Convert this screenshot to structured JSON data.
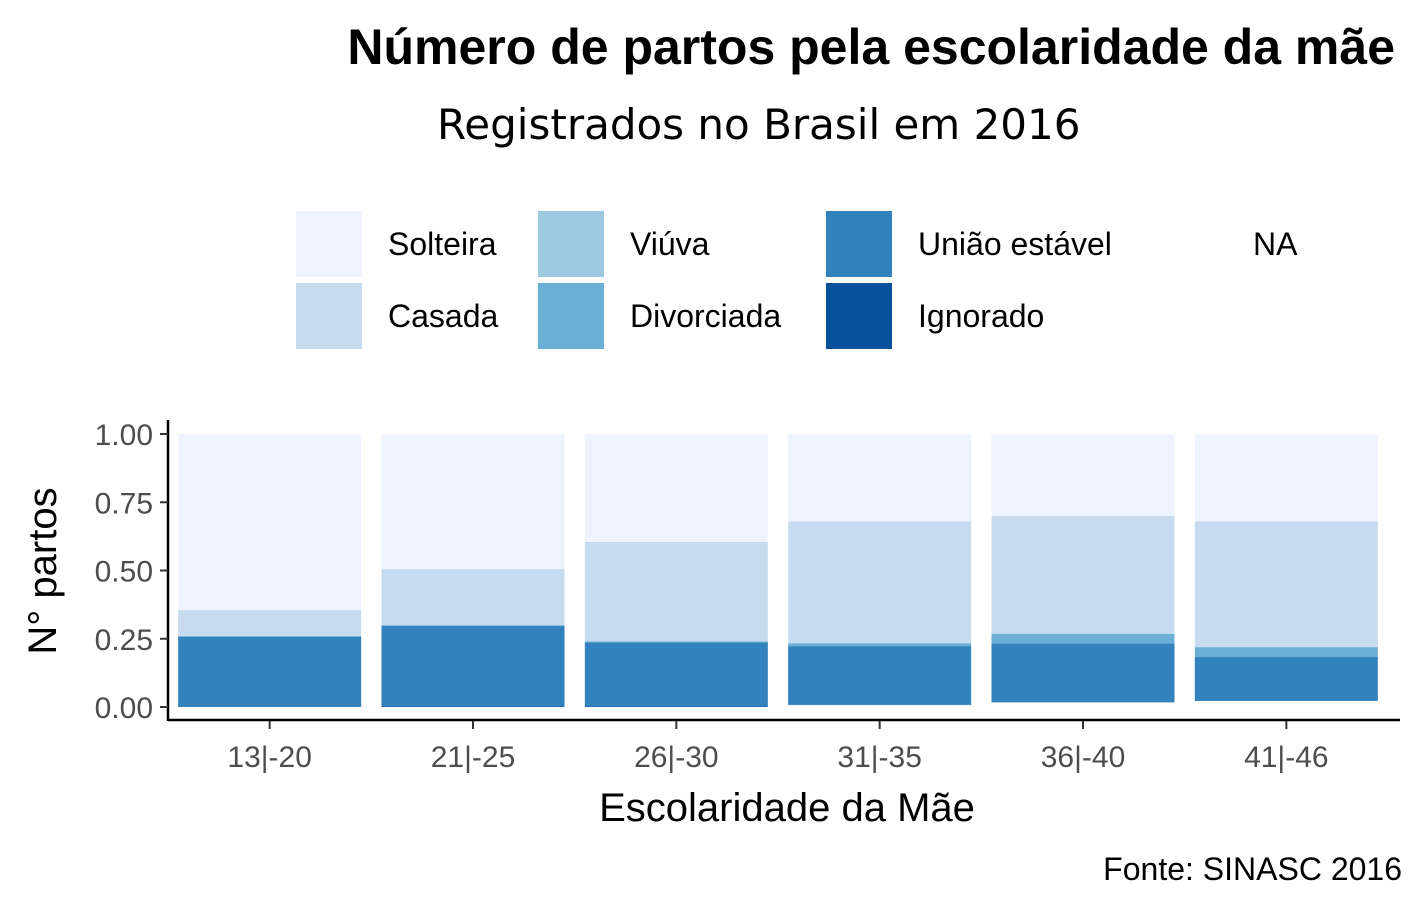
{
  "chart_data": {
    "type": "bar",
    "stacked": true,
    "normalized": true,
    "title": "Número de partos pela escolaridade da mãe",
    "subtitle": "Registrados no Brasil em 2016",
    "caption": "Fonte: SINASC 2016",
    "xlabel": "Escolaridade da Mãe",
    "ylabel": "N° partos",
    "ylim": [
      0,
      1
    ],
    "yticks": [
      "0.00",
      "0.25",
      "0.50",
      "0.75",
      "1.00"
    ],
    "categories": [
      "13|-20",
      "21|-25",
      "26|-30",
      "31|-35",
      "36|-40",
      "41|-46"
    ],
    "legend_position": "top",
    "legend": [
      {
        "name": "Solteira",
        "color": "#eff3ff"
      },
      {
        "name": "Casada",
        "color": "#c6dbef"
      },
      {
        "name": "Viúva",
        "color": "#9ecae1"
      },
      {
        "name": "Divorciada",
        "color": "#6baed6"
      },
      {
        "name": "União estável",
        "color": "#3182bd"
      },
      {
        "name": "Ignorado",
        "color": "#08519c"
      },
      {
        "name": "NA",
        "color": ""
      }
    ],
    "series": [
      {
        "name": "Solteira",
        "color": "#eff3ff",
        "values": [
          0.645,
          0.495,
          0.395,
          0.32,
          0.3,
          0.32
        ]
      },
      {
        "name": "Casada",
        "color": "#c6dbef",
        "values": [
          0.095,
          0.205,
          0.365,
          0.445,
          0.43,
          0.46
        ]
      },
      {
        "name": "Viúva",
        "color": "#9ecae1",
        "values": [
          0.0,
          0.0,
          0.0,
          0.002,
          0.002,
          0.002
        ]
      },
      {
        "name": "Divorciada",
        "color": "#6baed6",
        "values": [
          0.003,
          0.003,
          0.003,
          0.01,
          0.035,
          0.035
        ]
      },
      {
        "name": "União estável",
        "color": "#3182bd",
        "values": [
          0.257,
          0.295,
          0.235,
          0.215,
          0.215,
          0.16
        ]
      },
      {
        "name": "Ignorado",
        "color": "#08519c",
        "values": [
          0.0,
          0.002,
          0.002,
          0.001,
          0.001,
          0.001
        ]
      },
      {
        "name": "NA",
        "color": "",
        "values": [
          0.0,
          0.0,
          0.0,
          0.007,
          0.017,
          0.022
        ]
      }
    ]
  }
}
